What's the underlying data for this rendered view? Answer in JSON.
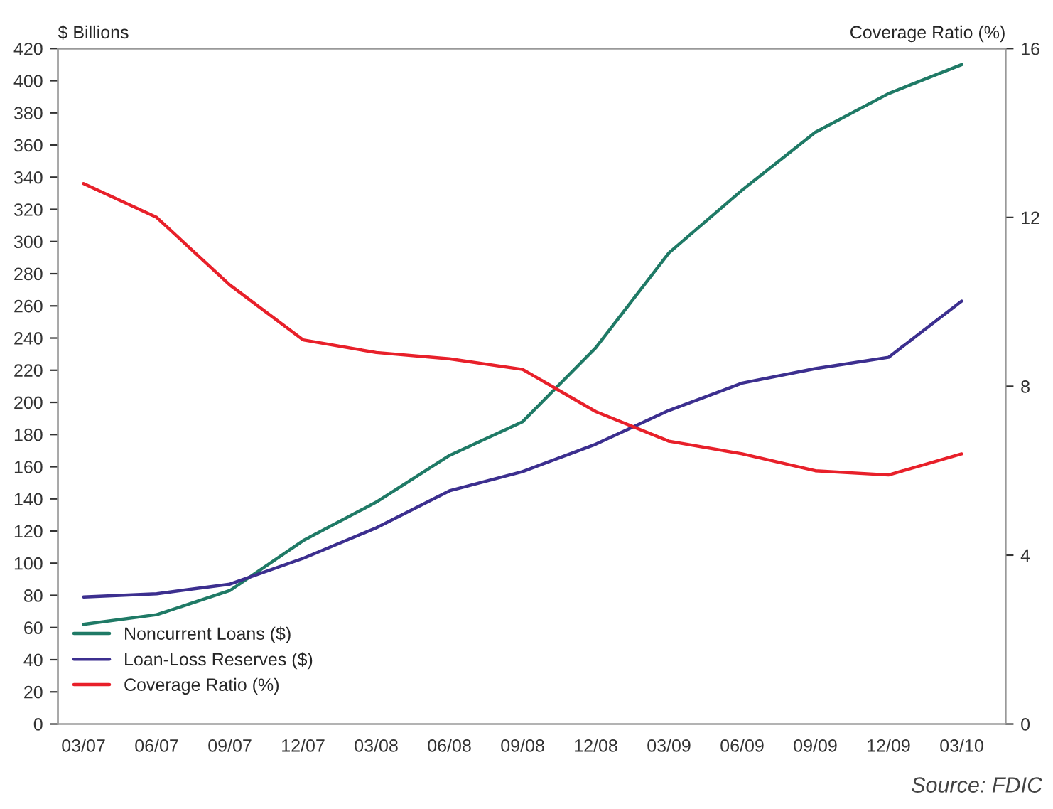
{
  "chart_data": {
    "type": "line",
    "xlabel": null,
    "ylabel": "$ Billions",
    "y2label": "Coverage Ratio (%)",
    "categories": [
      "03/07",
      "06/07",
      "09/07",
      "12/07",
      "03/08",
      "06/08",
      "09/08",
      "12/08",
      "03/09",
      "06/09",
      "09/09",
      "12/09",
      "03/10"
    ],
    "series": [
      {
        "name": "Noncurrent Loans ($)",
        "color": "#1f7a66",
        "values": [
          62,
          68,
          83,
          114,
          138,
          167,
          188,
          234,
          293,
          332,
          368,
          392,
          410
        ]
      },
      {
        "name": "Loan-Loss Reserves ($)",
        "color": "#3c2f8f",
        "values": [
          79,
          81,
          87,
          103,
          122,
          145,
          157,
          174,
          195,
          212,
          221,
          228,
          263
        ]
      },
      {
        "name": "Coverage Ratio (%)",
        "color": "#e8202a",
        "axis": "y2",
        "values": [
          12.8,
          12.0,
          10.4,
          9.1,
          8.8,
          8.65,
          8.4,
          7.4,
          6.7,
          6.4,
          6.0,
          5.9,
          6.4
        ]
      }
    ],
    "ylim": [
      0,
      420
    ],
    "yticks": [
      0,
      20,
      40,
      60,
      80,
      100,
      120,
      140,
      160,
      180,
      200,
      220,
      240,
      260,
      280,
      300,
      320,
      340,
      360,
      380,
      400,
      420
    ],
    "y2lim": [
      0,
      16
    ],
    "y2ticks": [
      0,
      4,
      8,
      12,
      16
    ],
    "grid": false,
    "legend": "bottom left",
    "marker": "none",
    "line_style": "solid",
    "annotations": [
      "Source: FDIC"
    ]
  }
}
